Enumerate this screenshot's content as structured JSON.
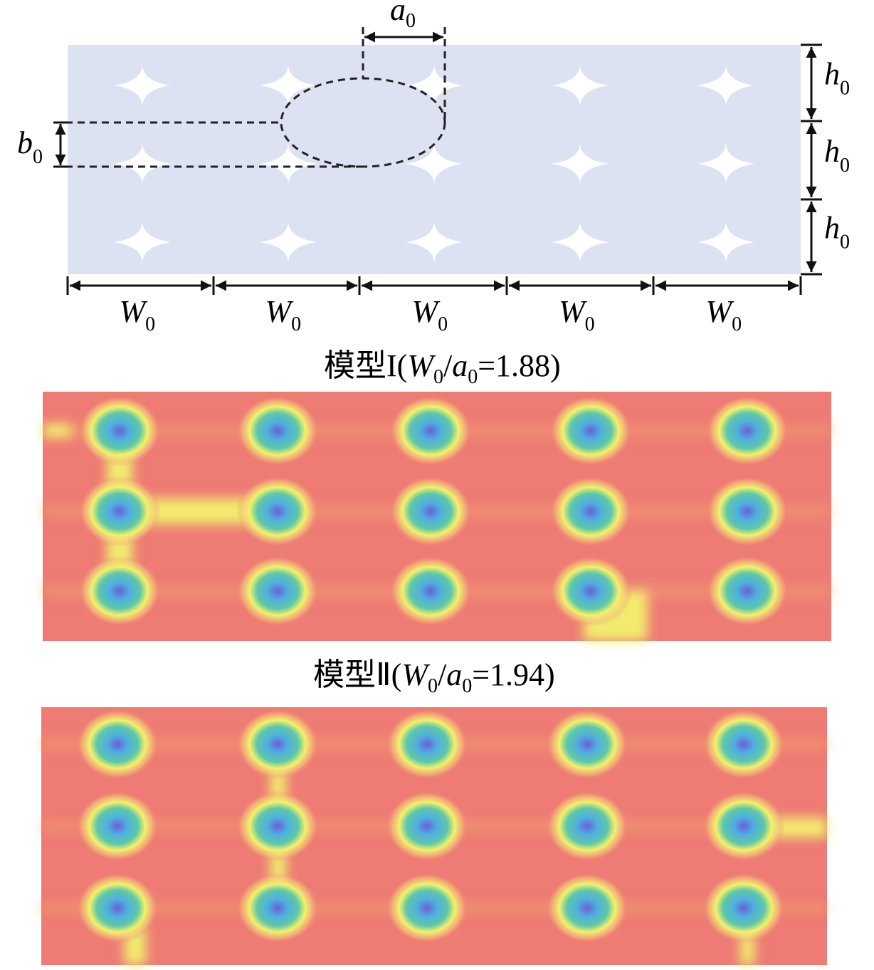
{
  "diagram": {
    "labels": {
      "a0": {
        "main": "a",
        "sub": "0"
      },
      "b0": {
        "main": "b",
        "sub": "0"
      },
      "h0": [
        {
          "main": "h",
          "sub": "0"
        },
        {
          "main": "h",
          "sub": "0"
        },
        {
          "main": "h",
          "sub": "0"
        }
      ],
      "W0": [
        {
          "main": "W",
          "sub": "0"
        },
        {
          "main": "W",
          "sub": "0"
        },
        {
          "main": "W",
          "sub": "0"
        },
        {
          "main": "W",
          "sub": "0"
        },
        {
          "main": "W",
          "sub": "0"
        }
      ]
    },
    "captions": [
      {
        "prefix": "模型I(",
        "w": "W",
        "w_sub": "0",
        "slash": "/",
        "a": "a",
        "a_sub": "0",
        "suffix": "=1.88)"
      },
      {
        "prefix": "模型Ⅱ(",
        "w": "W",
        "w_sub": "0",
        "slash": "/",
        "a": "a",
        "a_sub": "0",
        "suffix": "=1.94)"
      }
    ]
  }
}
